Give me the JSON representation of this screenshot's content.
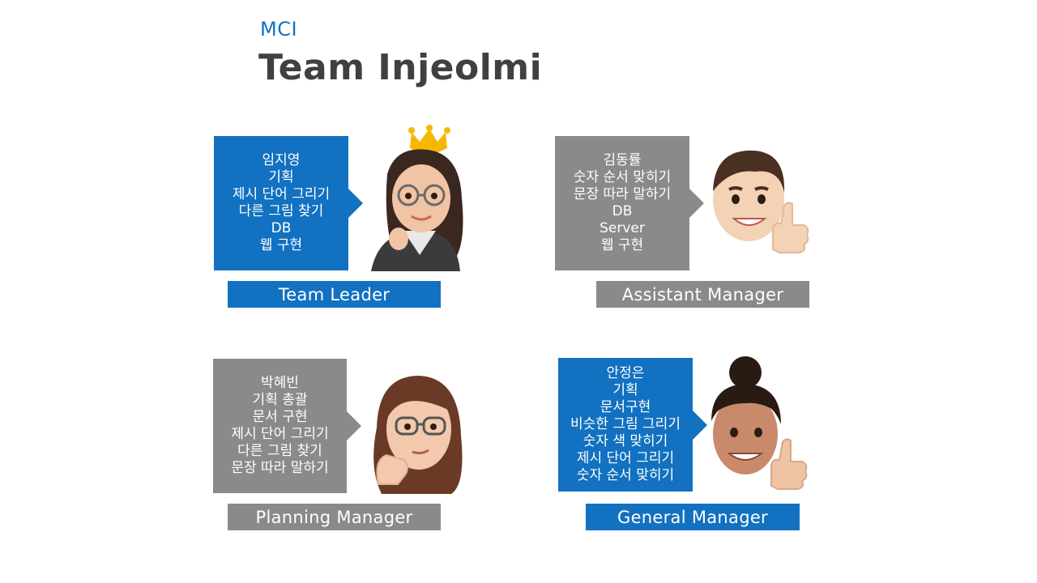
{
  "brand": "MCI",
  "title": "Team Injeolmi",
  "members": [
    {
      "lines": [
        "임지영",
        "기획",
        "제시 단어 그리기",
        "다른 그림 찾기",
        "DB",
        "웹 구현"
      ],
      "role": "Team Leader",
      "avatar": "woman-glasses-crown-avatar"
    },
    {
      "lines": [
        "김동률",
        "숫자 순서 맞히기",
        "문장 따라 말하기",
        "DB",
        "Server",
        "웹 구현"
      ],
      "role": "Assistant Manager",
      "avatar": "boy-thumbs-up-avatar"
    },
    {
      "lines": [
        "박혜빈",
        "기획 총괄",
        "문서 구현",
        "제시 단어 그리기",
        "다른 그림 찾기",
        "문장 따라 말하기"
      ],
      "role": "Planning Manager",
      "avatar": "woman-thinking-avatar"
    },
    {
      "lines": [
        "안정은",
        "기획",
        "문서구현",
        "비슷한 그림 그리기",
        "숫자 색 맞히기",
        "제시 단어 그리기",
        "숫자 순서 맞히기"
      ],
      "role": "General Manager",
      "avatar": "woman-bun-thumbs-up-avatar"
    }
  ],
  "colors": {
    "blue": "#1271c0",
    "gray": "#8a8a8a",
    "title": "#404040"
  }
}
